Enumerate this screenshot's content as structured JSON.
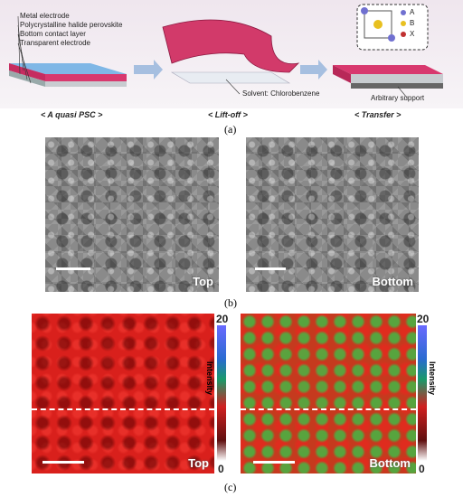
{
  "panel_a": {
    "layer_labels": [
      "Metal electrode",
      "Polycrystalline halide perovskite",
      "Bottom contact layer",
      "Transparent electrode"
    ],
    "stage_labels": [
      "< A quasi PSC >",
      "< Lift-off >",
      "< Transfer >"
    ],
    "solvent_label": "Solvent: Chlorobenzene",
    "support_label": "Arbitrary support",
    "crystal_legend": [
      "A",
      "B",
      "X"
    ],
    "caption": "(a)"
  },
  "panel_b": {
    "images": [
      {
        "label": "Top"
      },
      {
        "label": "Bottom"
      }
    ],
    "caption": "(b)"
  },
  "panel_c": {
    "images": [
      {
        "label": "Top",
        "colorbar": {
          "max": 20,
          "min": 0,
          "title": "Intensity"
        }
      },
      {
        "label": "Bottom",
        "colorbar": {
          "max": 20,
          "min": 0,
          "title": "Intensity"
        }
      }
    ],
    "caption": "(c)"
  }
}
